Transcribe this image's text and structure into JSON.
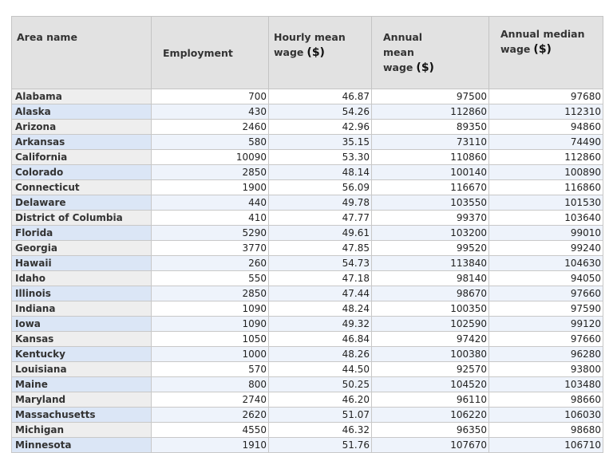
{
  "table": {
    "headers": [
      {
        "label": "Area name"
      },
      {
        "label": "Employment"
      },
      {
        "label": "Hourly mean wage",
        "unit": "($)"
      },
      {
        "label": "Annual mean wage",
        "unit": "($)"
      },
      {
        "label": "Annual median wage",
        "unit": "($)"
      }
    ],
    "rows": [
      [
        "Alabama",
        "700",
        "46.87",
        "97500",
        "97680"
      ],
      [
        "Alaska",
        "430",
        "54.26",
        "112860",
        "112310"
      ],
      [
        "Arizona",
        "2460",
        "42.96",
        "89350",
        "94860"
      ],
      [
        "Arkansas",
        "580",
        "35.15",
        "73110",
        "74490"
      ],
      [
        "California",
        "10090",
        "53.30",
        "110860",
        "112860"
      ],
      [
        "Colorado",
        "2850",
        "48.14",
        "100140",
        "100890"
      ],
      [
        "Connecticut",
        "1900",
        "56.09",
        "116670",
        "116860"
      ],
      [
        "Delaware",
        "440",
        "49.78",
        "103550",
        "101530"
      ],
      [
        "District of Columbia",
        "410",
        "47.77",
        "99370",
        "103640"
      ],
      [
        "Florida",
        "5290",
        "49.61",
        "103200",
        "99010"
      ],
      [
        "Georgia",
        "3770",
        "47.85",
        "99520",
        "99240"
      ],
      [
        "Hawaii",
        "260",
        "54.73",
        "113840",
        "104630"
      ],
      [
        "Idaho",
        "550",
        "47.18",
        "98140",
        "94050"
      ],
      [
        "Illinois",
        "2850",
        "47.44",
        "98670",
        "97660"
      ],
      [
        "Indiana",
        "1090",
        "48.24",
        "100350",
        "97590"
      ],
      [
        "Iowa",
        "1090",
        "49.32",
        "102590",
        "99120"
      ],
      [
        "Kansas",
        "1050",
        "46.84",
        "97420",
        "97660"
      ],
      [
        "Kentucky",
        "1000",
        "48.26",
        "100380",
        "96280"
      ],
      [
        "Louisiana",
        "570",
        "44.50",
        "92570",
        "93800"
      ],
      [
        "Maine",
        "800",
        "50.25",
        "104520",
        "103480"
      ],
      [
        "Maryland",
        "2740",
        "46.20",
        "96110",
        "98660"
      ],
      [
        "Massachusetts",
        "2620",
        "51.07",
        "106220",
        "106030"
      ],
      [
        "Michigan",
        "4550",
        "46.32",
        "96350",
        "98680"
      ],
      [
        "Minnesota",
        "1910",
        "51.76",
        "107670",
        "106710"
      ]
    ]
  }
}
